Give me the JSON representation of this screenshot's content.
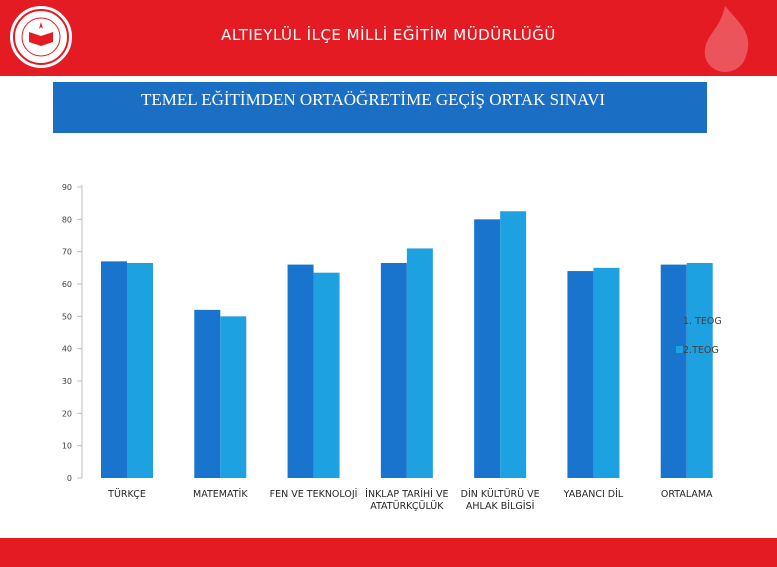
{
  "header": {
    "title": "ALTIEYLÜL İLÇE MİLLİ EĞİTİM MÜDÜRLÜĞÜ",
    "logo_text": "T.C. MİLLÎ EĞİTİM BAKANLIĞI"
  },
  "colors": {
    "header_red": "#e41b23",
    "title_blue": "#1a6fc4",
    "series1": "#1874cd",
    "series2": "#1ea1e0"
  },
  "chart_data": {
    "type": "bar",
    "title": "TEMEL EĞİTİMDEN ORTAÖĞRETİME GEÇİŞ ORTAK SINAVI",
    "categories": [
      [
        "TÜRKÇE"
      ],
      [
        "MATEMATİK"
      ],
      [
        "FEN VE TEKNOLOJİ"
      ],
      [
        "İNKLAP TARİHİ VE",
        "ATATÜRKÇÜLÜK"
      ],
      [
        "DİN KÜLTÜRÜ VE",
        "AHLAK BİLGİSİ"
      ],
      [
        "YABANCI DİL"
      ],
      [
        "ORTALAMA"
      ]
    ],
    "series": [
      {
        "name": "1. TEOG",
        "values": [
          67,
          52,
          66,
          66.5,
          80,
          64,
          66
        ]
      },
      {
        "name": "2.TEOG",
        "values": [
          66.5,
          50,
          63.5,
          71,
          82.5,
          65,
          66.5
        ]
      }
    ],
    "y_ticks": [
      "0",
      "10",
      "20",
      "30",
      "40",
      "50",
      "60",
      "70",
      "80",
      "90"
    ],
    "ylim": [
      0,
      90
    ],
    "grid": false,
    "legend_position": "right"
  }
}
